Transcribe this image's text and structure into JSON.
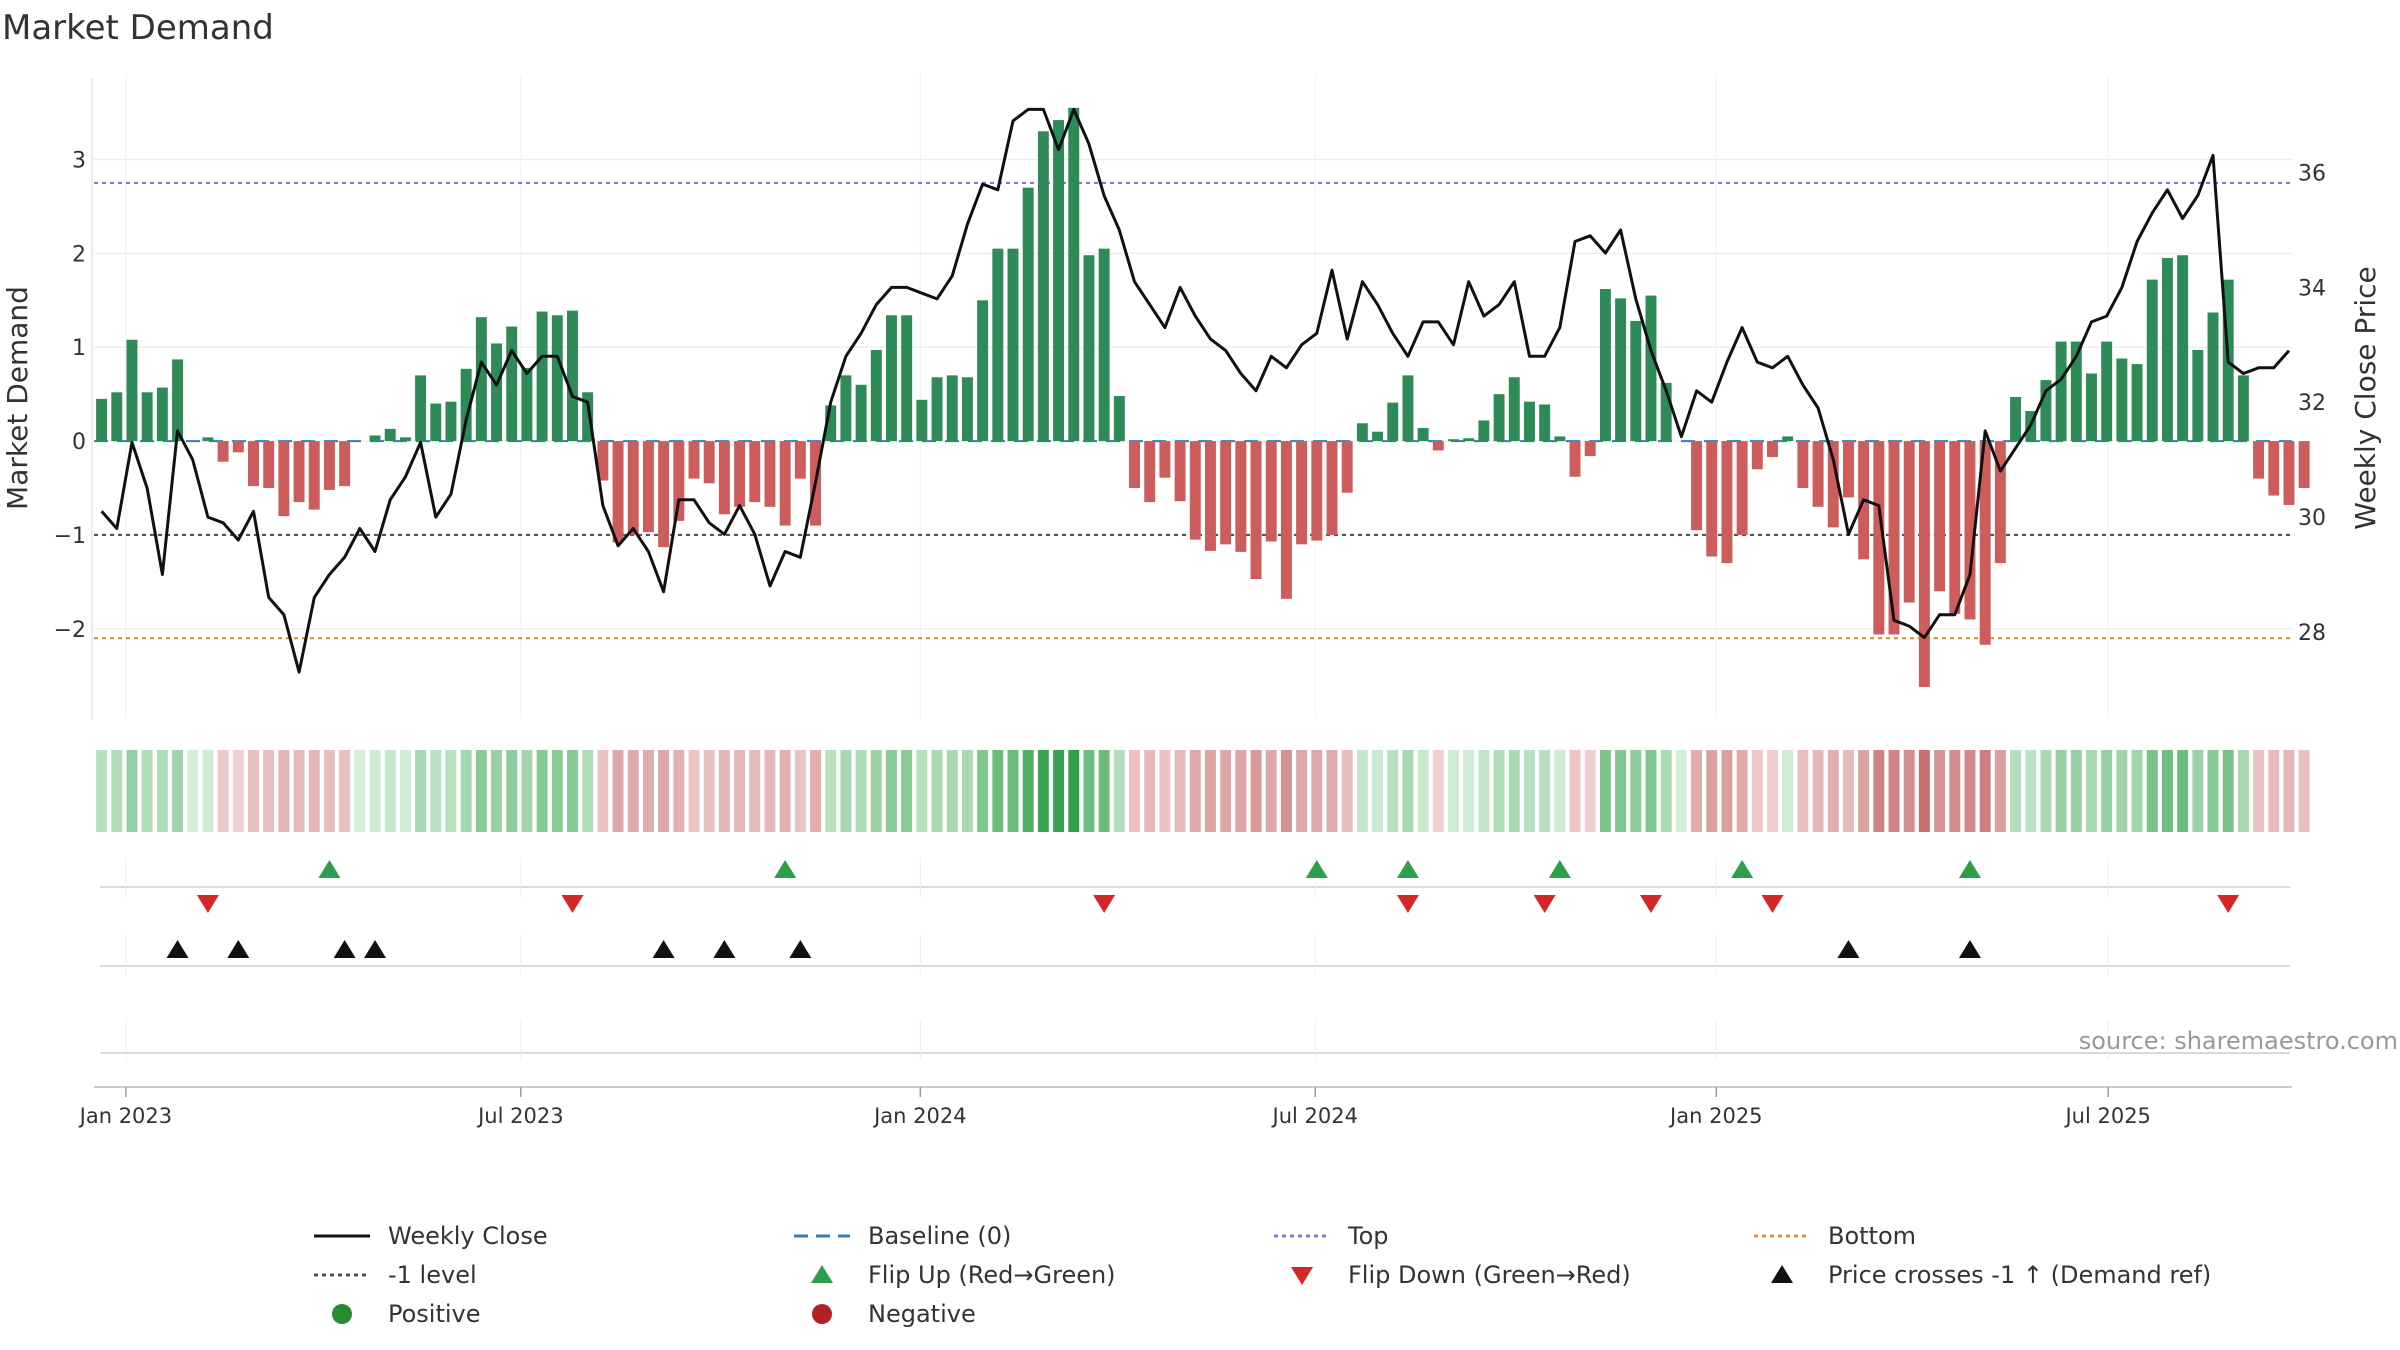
{
  "chart_data": {
    "type": "bar",
    "title": "Market Demand",
    "ylabel_left": "Market Demand",
    "ylabel_right": "Weekly Close Price",
    "ylim_left": [
      -2.95,
      3.9
    ],
    "ylim_right": [
      26.5,
      37.7
    ],
    "yticks_left": [
      -2,
      -1,
      0,
      1,
      2,
      3
    ],
    "yticks_left_labels": [
      "−2",
      "−1",
      "0",
      "1",
      "2",
      "3"
    ],
    "yticks_right": [
      28,
      30,
      32,
      34,
      36
    ],
    "x_start_week": 0,
    "xticks": [
      {
        "label": "Jan 2023",
        "week": 1.6
      },
      {
        "label": "Jul 2023",
        "week": 27.6
      },
      {
        "label": "Jan 2024",
        "week": 53.9
      },
      {
        "label": "Jul 2024",
        "week": 79.9
      },
      {
        "label": "Jan 2025",
        "week": 106.3
      },
      {
        "label": "Jul 2025",
        "week": 132.1
      }
    ],
    "xlim": [
      -0.5,
      144.2
    ],
    "demand": [
      0.45,
      0.52,
      1.08,
      0.52,
      0.57,
      0.87,
      0,
      0.04,
      -0.22,
      -0.12,
      -0.48,
      -0.5,
      -0.8,
      -0.65,
      -0.73,
      -0.52,
      -0.48,
      0,
      0.06,
      0.13,
      0.04,
      0.7,
      0.4,
      0.42,
      0.77,
      1.32,
      1.04,
      1.22,
      0.78,
      1.38,
      1.34,
      1.39,
      0.52,
      -0.42,
      -1.08,
      -1.0,
      -0.97,
      -1.13,
      -0.85,
      -0.4,
      -0.45,
      -0.78,
      -0.7,
      -0.65,
      -0.7,
      -0.9,
      -0.4,
      -0.9,
      0.38,
      0.7,
      0.6,
      0.97,
      1.34,
      1.34,
      0.44,
      0.68,
      0.7,
      0.68,
      1.5,
      2.05,
      2.05,
      2.7,
      3.3,
      3.42,
      3.55,
      1.98,
      2.05,
      0.48,
      -0.5,
      -0.65,
      -0.39,
      -0.64,
      -1.05,
      -1.17,
      -1.1,
      -1.18,
      -1.47,
      -1.07,
      -1.68,
      -1.1,
      -1.06,
      -1.0,
      -0.55,
      0.19,
      0.1,
      0.41,
      0.7,
      0.14,
      -0.1,
      0.02,
      0.03,
      0.22,
      0.5,
      0.68,
      0.42,
      0.39,
      0.05,
      -0.38,
      -0.16,
      1.62,
      1.52,
      1.28,
      1.55,
      0.62,
      0,
      -0.95,
      -1.23,
      -1.3,
      -1.0,
      -0.3,
      -0.17,
      0.05,
      -0.5,
      -0.7,
      -0.92,
      -0.6,
      -1.26,
      -2.06,
      -2.06,
      -1.72,
      -2.62,
      -1.6,
      -1.84,
      -1.9,
      -2.17,
      -1.3,
      0.47,
      0.32,
      0.65,
      1.06,
      1.06,
      0.72,
      1.06,
      0.88,
      0.82,
      1.72,
      1.95,
      1.98,
      0.97,
      1.37,
      1.72,
      0.7,
      -0.4,
      -0.58,
      -0.68,
      -0.5
    ],
    "price": [
      30.1,
      29.8,
      31.3,
      30.5,
      29.0,
      31.5,
      31.0,
      30.0,
      29.9,
      29.6,
      30.1,
      28.6,
      28.3,
      27.3,
      28.6,
      29.0,
      29.3,
      29.8,
      29.4,
      30.3,
      30.7,
      31.3,
      30.0,
      30.4,
      31.7,
      32.7,
      32.3,
      32.9,
      32.5,
      32.8,
      32.8,
      32.1,
      32.0,
      30.2,
      29.5,
      29.8,
      29.4,
      28.7,
      30.3,
      30.3,
      29.9,
      29.7,
      30.2,
      29.7,
      28.8,
      29.4,
      29.3,
      30.6,
      32.0,
      32.8,
      33.2,
      33.7,
      34.0,
      34.0,
      33.9,
      33.8,
      34.2,
      35.1,
      35.8,
      35.7,
      36.9,
      37.1,
      37.1,
      36.4,
      37.1,
      36.5,
      35.6,
      35.0,
      34.1,
      33.7,
      33.3,
      34.0,
      33.5,
      33.1,
      32.9,
      32.5,
      32.2,
      32.8,
      32.6,
      33.0,
      33.2,
      34.3,
      33.1,
      34.1,
      33.7,
      33.2,
      32.8,
      33.4,
      33.4,
      33.0,
      34.1,
      33.5,
      33.7,
      34.1,
      32.8,
      32.8,
      33.3,
      34.8,
      34.9,
      34.6,
      35.0,
      33.8,
      32.9,
      32.2,
      31.4,
      32.2,
      32.0,
      32.7,
      33.3,
      32.7,
      32.6,
      32.8,
      32.3,
      31.9,
      31.0,
      29.7,
      30.3,
      30.2,
      28.2,
      28.1,
      27.9,
      28.3,
      28.3,
      29.0,
      31.5,
      30.8,
      31.2,
      31.6,
      32.2,
      32.4,
      32.8,
      33.4,
      33.5,
      34.0,
      34.8,
      35.3,
      35.7,
      35.2,
      35.6,
      36.3,
      32.7,
      32.5,
      32.6,
      32.6,
      32.9
    ],
    "reference_lines": [
      {
        "name": "Top",
        "value": 2.75,
        "color": "#7b7bd0"
      },
      {
        "name": "-1 level",
        "value": -1.0,
        "color": "#555555"
      },
      {
        "name": "Bottom",
        "value": -2.1,
        "color": "#e0902a"
      },
      {
        "name": "Baseline (0)",
        "value": 0,
        "color": "#2f7fbf"
      }
    ],
    "flip_up_weeks": [
      15,
      45,
      80,
      86,
      96,
      108,
      123
    ],
    "flip_down_weeks": [
      7,
      31,
      66,
      86,
      95,
      102,
      110,
      140
    ],
    "price_cross_weeks": [
      5,
      9,
      16,
      18,
      37,
      41,
      46,
      115,
      123
    ],
    "colors": {
      "positive_bar": "#2e8b57",
      "negative_bar": "#cd5c5c",
      "price_line": "#111111",
      "flip_up": "#2aa04a",
      "flip_down": "#d62728",
      "price_cross": "#111111",
      "positive_dot": "#2a8a32",
      "negative_dot": "#b22222"
    },
    "source": "source: sharemaestro.com",
    "legend": [
      {
        "label": "Weekly Close",
        "symbol": "solid-line"
      },
      {
        "label": "Baseline (0)",
        "symbol": "dashed-line"
      },
      {
        "label": "Top",
        "symbol": "dotted-line"
      },
      {
        "label": "Bottom",
        "symbol": "dotted-line"
      },
      {
        "label": "-1 level",
        "symbol": "dotted-line"
      },
      {
        "label": "Flip Up (Red→Green)",
        "symbol": "triangle-up"
      },
      {
        "label": "Flip Down (Green→Red)",
        "symbol": "triangle-down"
      },
      {
        "label": "Price crosses -1 ↑ (Demand ref)",
        "symbol": "triangle-up"
      },
      {
        "label": "Positive",
        "symbol": "dot"
      },
      {
        "label": "Negative",
        "symbol": "dot"
      }
    ]
  }
}
